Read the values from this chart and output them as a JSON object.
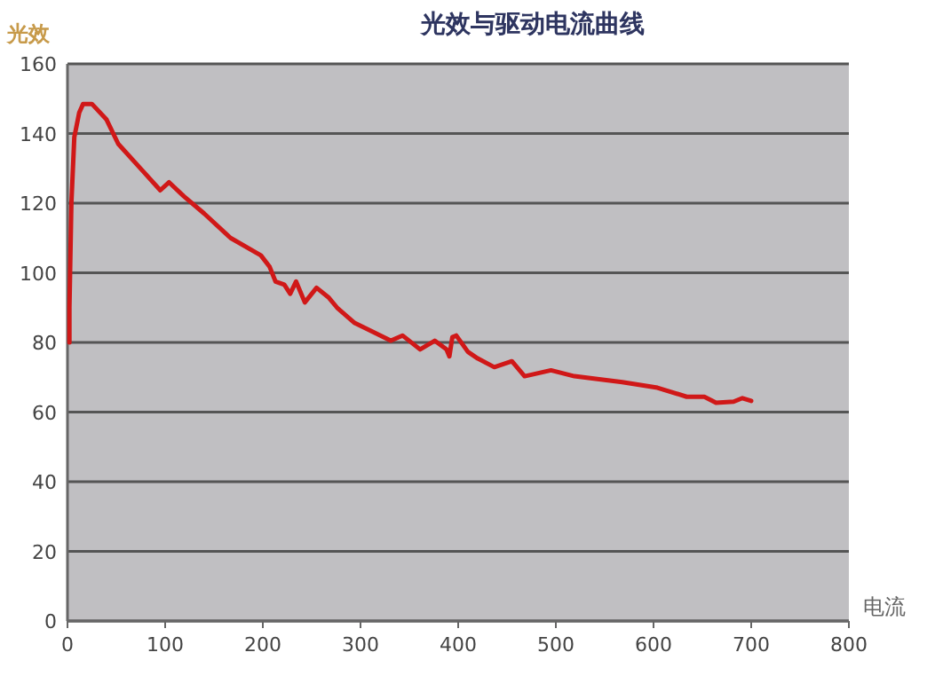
{
  "chart_data": {
    "type": "line",
    "title": "光效与驱动电流曲线",
    "xlabel": "电流",
    "ylabel": "光效",
    "xlim": [
      0,
      800
    ],
    "xticks": [
      0,
      100,
      200,
      300,
      400,
      500,
      600,
      700,
      800
    ],
    "ylim": [
      0,
      160
    ],
    "yticks": [
      0,
      20,
      40,
      60,
      80,
      100,
      120,
      140,
      160
    ],
    "grid": "y",
    "marker": "none",
    "line_style": "solid",
    "series": [
      {
        "color": "#d01818",
        "x": [
          2,
          2,
          4,
          7,
          12,
          16,
          25,
          40,
          52,
          76,
          95,
          104,
          119,
          140,
          167,
          198,
          207,
          213,
          222,
          228,
          234,
          243,
          255,
          267,
          276,
          294,
          313,
          331,
          343,
          361,
          376,
          388,
          391,
          394,
          398,
          410,
          420,
          437,
          455,
          468,
          495,
          519,
          568,
          604,
          634,
          652,
          664,
          682,
          691,
          700
        ],
        "values": [
          80,
          90,
          120,
          139,
          146,
          148.5,
          148.5,
          144,
          137,
          129.6,
          123.7,
          126,
          122,
          117,
          110,
          105,
          101.7,
          97.5,
          96.6,
          94,
          97.5,
          91.5,
          95.7,
          93,
          90,
          85.6,
          83,
          80.5,
          82,
          78,
          80.5,
          78,
          76,
          81.5,
          82,
          77.3,
          75.4,
          72.9,
          74.6,
          70.3,
          72,
          70.3,
          68.6,
          67,
          64.4,
          64.4,
          62.7,
          63,
          64,
          63.2
        ]
      }
    ]
  }
}
